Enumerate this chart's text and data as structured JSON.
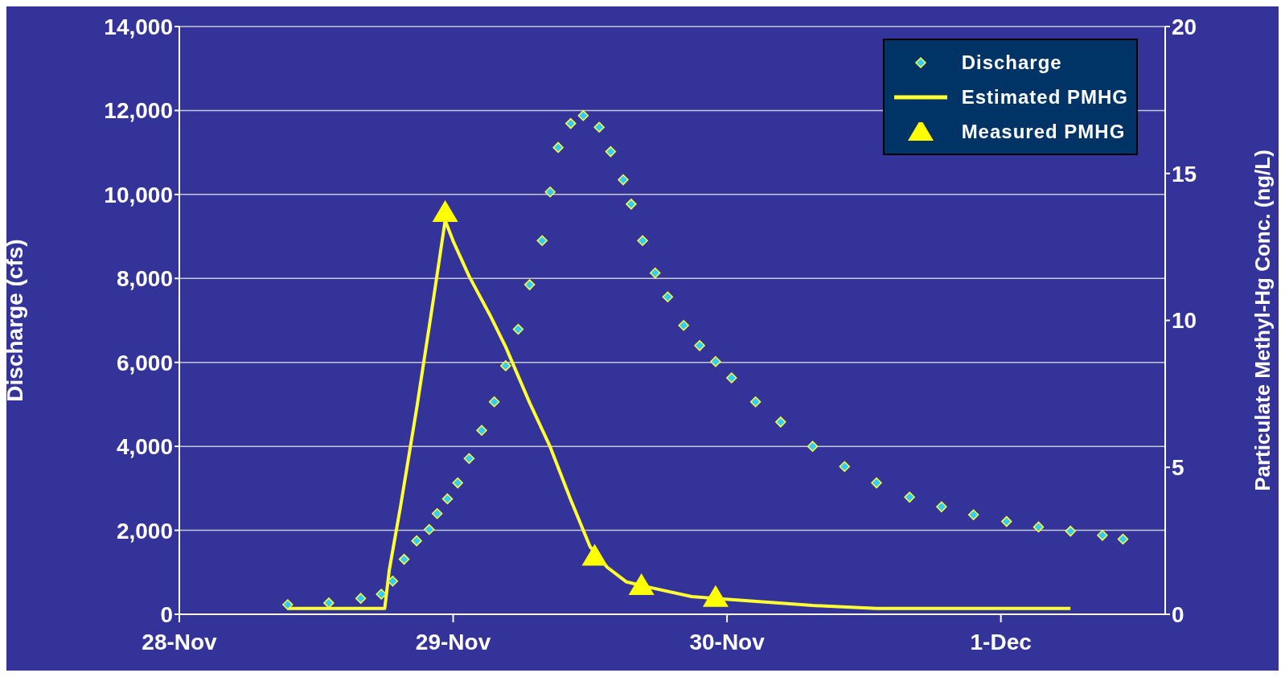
{
  "chart_data": {
    "type": "scatter",
    "ylabel": "Discharge (cfs)",
    "y2label": "Particulate Methyl-Hg Conc. (ng/L)",
    "xlim": [
      "--11-28",
      "--12-01T14:24"
    ],
    "xticks": [
      {
        "value": "--11-28",
        "label": "28-Nov"
      },
      {
        "value": "--11-29",
        "label": "29-Nov"
      },
      {
        "value": "--11-30",
        "label": "30-Nov"
      },
      {
        "value": "--12-01",
        "label": "1-Dec"
      }
    ],
    "ylim": [
      0,
      14000
    ],
    "yticks": [
      {
        "value": 0,
        "label": "0"
      },
      {
        "value": 2000,
        "label": "2,000"
      },
      {
        "value": 4000,
        "label": "4,000"
      },
      {
        "value": 6000,
        "label": "6,000"
      },
      {
        "value": 8000,
        "label": "8,000"
      },
      {
        "value": 10000,
        "label": "10,000"
      },
      {
        "value": 12000,
        "label": "12,000"
      },
      {
        "value": 14000,
        "label": "14,000"
      }
    ],
    "y2lim": [
      0,
      20
    ],
    "y2ticks": [
      0,
      5,
      10,
      15,
      20
    ],
    "grid": "y",
    "legend": "top right",
    "series": [
      {
        "name": "Discharge",
        "marker": "diamond",
        "color": "#33ccff",
        "x": [
          "--11-28T09:30",
          "--11-28T13:06",
          "--11-28T15:54",
          "--11-28T17:42",
          "--11-28T18:42",
          "--11-28T19:42",
          "--11-28T20:48",
          "--11-28T21:54",
          "--11-28T22:36",
          "--11-28T23:30",
          "--11-29T00:24",
          "--11-29T01:24",
          "--11-29T02:30",
          "--11-29T03:36",
          "--11-29T04:36",
          "--11-29T05:42",
          "--11-29T06:42",
          "--11-29T07:48",
          "--11-29T08:30",
          "--11-29T09:12",
          "--11-29T10:18",
          "--11-29T11:24",
          "--11-29T12:48",
          "--11-29T13:48",
          "--11-29T14:54",
          "--11-29T15:36",
          "--11-29T16:36",
          "--11-29T17:42",
          "--11-29T18:48",
          "--11-29T20:12",
          "--11-29T21:36",
          "--11-29T23:00",
          "--11-30T00:24",
          "--11-30T02:30",
          "--11-30T04:42",
          "--11-30T07:30",
          "--11-30T10:18",
          "--11-30T13:06",
          "--11-30T16:00",
          "--11-30T18:48",
          "--11-30T21:36",
          "--12-01T00:30",
          "--12-01T03:18",
          "--12-01T06:06",
          "--12-01T08:54",
          "--12-01T10:42"
        ],
        "values": [
          230,
          270,
          380,
          480,
          790,
          1310,
          1750,
          2020,
          2400,
          2750,
          3130,
          3710,
          4380,
          5060,
          5920,
          6790,
          7850,
          8900,
          10060,
          11120,
          11690,
          11880,
          11600,
          11020,
          10350,
          9770,
          8900,
          8130,
          7560,
          6880,
          6400,
          6020,
          5630,
          5060,
          4580,
          4000,
          3520,
          3130,
          2790,
          2560,
          2370,
          2210,
          2080,
          1980,
          1880,
          1790
        ]
      },
      {
        "name": "Estimated PMHG",
        "type": "line",
        "axis": "y2",
        "marker": "none",
        "color": "#ffff33",
        "x": [
          "--11-28T09:30",
          "--11-28T18:00",
          "--11-28T18:24",
          "--11-28T19:24",
          "--11-28T20:48",
          "--11-28T22:18",
          "--11-28T23:18",
          "--11-29T00:00",
          "--11-29T01:24",
          "--11-29T03:12",
          "--11-29T04:36",
          "--11-29T06:42",
          "--11-29T08:30",
          "--11-29T10:18",
          "--11-29T12:00",
          "--11-29T13:30",
          "--11-29T15:12",
          "--11-29T17:24",
          "--11-29T20:54",
          "--11-30T00:24",
          "--11-30T07:30",
          "--11-30T13:06",
          "--12-01T06:06"
        ],
        "values": [
          0.2,
          0.2,
          1.5,
          3.7,
          7,
          10.8,
          13.4,
          12.7,
          11.5,
          10.2,
          9.1,
          7.2,
          5.7,
          3.9,
          2.3,
          1.6,
          1.1,
          0.9,
          0.6,
          0.5,
          0.3,
          0.2,
          0.2
        ]
      },
      {
        "name": "Measured PMHG",
        "axis": "y2",
        "marker": "triangle",
        "color": "#ffff00",
        "x": [
          "--11-28T23:18",
          "--11-29T12:24",
          "--11-29T16:30",
          "--11-29T23:00"
        ],
        "values": [
          13.6,
          1.9,
          0.9,
          0.5
        ]
      }
    ]
  }
}
